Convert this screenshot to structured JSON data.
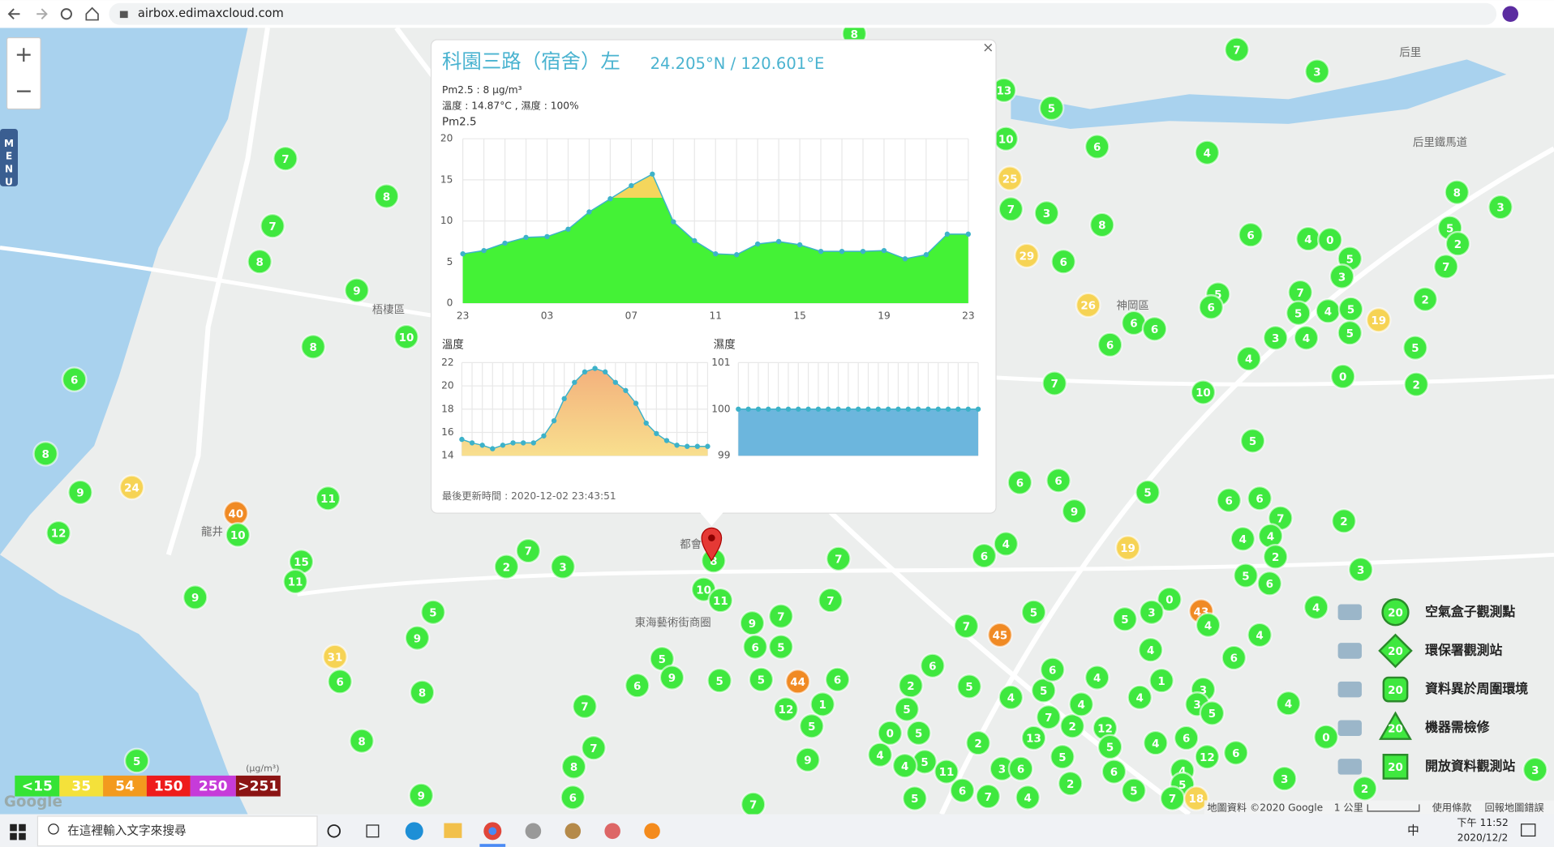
{
  "browser": {
    "url": "airbox.edimaxcloud.com"
  },
  "map": {
    "zoom_in": "+",
    "zoom_out": "−",
    "menu": [
      "M",
      "E",
      "N",
      "U"
    ],
    "google": "Google",
    "attribution": "地圖資料 ©2020 Google",
    "scale": "1 公里",
    "terms": "使用條款",
    "report": "回報地圖錯誤",
    "places": [
      "梧棲區",
      "神岡區",
      "東海藝術街商圈",
      "后里鐵馬道",
      "都會",
      "龍井",
      "后里"
    ],
    "markers": [
      {
        "label": 7,
        "color": "#3fe83f"
      },
      {
        "label": 8,
        "color": "#3fe83f"
      },
      {
        "label": 7,
        "color": "#3fe83f"
      },
      {
        "label": 8,
        "color": "#3fe83f"
      },
      {
        "label": 9,
        "color": "#3fe83f"
      },
      {
        "label": 8,
        "color": "#3fe83f"
      },
      {
        "label": 10,
        "color": "#3fe83f"
      },
      {
        "label": 6,
        "color": "#3fe83f"
      },
      {
        "label": 8,
        "color": "#3fe83f"
      },
      {
        "label": 9,
        "color": "#3fe83f"
      },
      {
        "label": 24,
        "color": "#f6d354"
      },
      {
        "label": 12,
        "color": "#3fe83f"
      },
      {
        "label": 40,
        "color": "#f08a24"
      },
      {
        "label": 10,
        "color": "#3fe83f"
      },
      {
        "label": 11,
        "color": "#3fe83f"
      },
      {
        "label": 15,
        "color": "#3fe83f"
      },
      {
        "label": 11,
        "color": "#3fe83f"
      },
      {
        "label": 9,
        "color": "#3fe83f"
      },
      {
        "label": 31,
        "color": "#f6d354"
      },
      {
        "label": 6,
        "color": "#3fe83f"
      },
      {
        "label": 8,
        "color": "#3fe83f"
      },
      {
        "label": 8,
        "color": "#3fe83f"
      },
      {
        "label": 9,
        "color": "#3fe83f"
      },
      {
        "label": 5,
        "color": "#3fe83f"
      },
      {
        "label": 8,
        "color": "#3fe83f"
      },
      {
        "label": 13,
        "color": "#3fe83f"
      },
      {
        "label": 5,
        "color": "#3fe83f"
      },
      {
        "label": 10,
        "color": "#3fe83f"
      },
      {
        "label": 6,
        "color": "#3fe83f"
      },
      {
        "label": 25,
        "color": "#f6d354"
      },
      {
        "label": 7,
        "color": "#3fe83f"
      },
      {
        "label": 3,
        "color": "#3fe83f"
      },
      {
        "label": 8,
        "color": "#3fe83f"
      },
      {
        "label": 29,
        "color": "#f6d354"
      },
      {
        "label": 6,
        "color": "#3fe83f"
      },
      {
        "label": 7,
        "color": "#3fe83f"
      },
      {
        "label": 3,
        "color": "#3fe83f"
      },
      {
        "label": 4,
        "color": "#3fe83f"
      },
      {
        "label": 8,
        "color": "#3fe83f"
      },
      {
        "label": 3,
        "color": "#3fe83f"
      },
      {
        "label": 6,
        "color": "#3fe83f"
      },
      {
        "label": 4,
        "color": "#3fe83f"
      },
      {
        "label": 0,
        "color": "#3fe83f"
      },
      {
        "label": 5,
        "color": "#3fe83f"
      },
      {
        "label": 2,
        "color": "#3fe83f"
      },
      {
        "label": 5,
        "color": "#3fe83f"
      },
      {
        "label": 3,
        "color": "#3fe83f"
      },
      {
        "label": 7,
        "color": "#3fe83f"
      },
      {
        "label": 2,
        "color": "#3fe83f"
      },
      {
        "label": 26,
        "color": "#f6d354"
      },
      {
        "label": 6,
        "color": "#3fe83f"
      },
      {
        "label": 6,
        "color": "#3fe83f"
      },
      {
        "label": 6,
        "color": "#3fe83f"
      },
      {
        "label": 5,
        "color": "#3fe83f"
      },
      {
        "label": 6,
        "color": "#3fe83f"
      },
      {
        "label": 7,
        "color": "#3fe83f"
      },
      {
        "label": 5,
        "color": "#3fe83f"
      },
      {
        "label": 4,
        "color": "#3fe83f"
      },
      {
        "label": 5,
        "color": "#3fe83f"
      },
      {
        "label": 19,
        "color": "#f6d354"
      },
      {
        "label": 3,
        "color": "#3fe83f"
      },
      {
        "label": 4,
        "color": "#3fe83f"
      },
      {
        "label": 5,
        "color": "#3fe83f"
      },
      {
        "label": 5,
        "color": "#3fe83f"
      },
      {
        "label": 4,
        "color": "#3fe83f"
      },
      {
        "label": 0,
        "color": "#3fe83f"
      },
      {
        "label": 2,
        "color": "#3fe83f"
      },
      {
        "label": 7,
        "color": "#3fe83f"
      },
      {
        "label": 10,
        "color": "#3fe83f"
      },
      {
        "label": 5,
        "color": "#3fe83f"
      },
      {
        "label": 6,
        "color": "#3fe83f"
      },
      {
        "label": 6,
        "color": "#3fe83f"
      },
      {
        "label": 5,
        "color": "#3fe83f"
      },
      {
        "label": 9,
        "color": "#3fe83f"
      },
      {
        "label": 6,
        "color": "#3fe83f"
      },
      {
        "label": 6,
        "color": "#3fe83f"
      },
      {
        "label": 7,
        "color": "#3fe83f"
      },
      {
        "label": 2,
        "color": "#3fe83f"
      },
      {
        "label": 4,
        "color": "#3fe83f"
      },
      {
        "label": 4,
        "color": "#3fe83f"
      },
      {
        "label": 2,
        "color": "#3fe83f"
      },
      {
        "label": 3,
        "color": "#3fe83f"
      },
      {
        "label": 19,
        "color": "#f6d354"
      },
      {
        "label": 4,
        "color": "#3fe83f"
      },
      {
        "label": 6,
        "color": "#3fe83f"
      },
      {
        "label": 5,
        "color": "#3fe83f"
      },
      {
        "label": 6,
        "color": "#3fe83f"
      },
      {
        "label": 4,
        "color": "#3fe83f"
      },
      {
        "label": 0,
        "color": "#3fe83f"
      },
      {
        "label": 43,
        "color": "#f08a24"
      },
      {
        "label": 4,
        "color": "#3fe83f"
      },
      {
        "label": 45,
        "color": "#f08a24"
      },
      {
        "label": 5,
        "color": "#3fe83f"
      },
      {
        "label": 7,
        "color": "#3fe83f"
      },
      {
        "label": 3,
        "color": "#3fe83f"
      },
      {
        "label": 5,
        "color": "#3fe83f"
      },
      {
        "label": 4,
        "color": "#3fe83f"
      },
      {
        "label": 6,
        "color": "#3fe83f"
      },
      {
        "label": 4,
        "color": "#3fe83f"
      },
      {
        "label": 8,
        "color": "#3fe83f"
      },
      {
        "label": 10,
        "color": "#3fe83f"
      },
      {
        "label": 11,
        "color": "#3fe83f"
      },
      {
        "label": 3,
        "color": "#3fe83f"
      },
      {
        "label": 2,
        "color": "#3fe83f"
      },
      {
        "label": 7,
        "color": "#3fe83f"
      },
      {
        "label": 5,
        "color": "#3fe83f"
      },
      {
        "label": 9,
        "color": "#3fe83f"
      },
      {
        "label": 7,
        "color": "#3fe83f"
      },
      {
        "label": 7,
        "color": "#3fe83f"
      },
      {
        "label": 7,
        "color": "#3fe83f"
      },
      {
        "label": 9,
        "color": "#3fe83f"
      },
      {
        "label": 6,
        "color": "#3fe83f"
      },
      {
        "label": 5,
        "color": "#3fe83f"
      },
      {
        "label": 5,
        "color": "#3fe83f"
      },
      {
        "label": 9,
        "color": "#3fe83f"
      },
      {
        "label": 6,
        "color": "#3fe83f"
      },
      {
        "label": 5,
        "color": "#3fe83f"
      },
      {
        "label": 5,
        "color": "#3fe83f"
      },
      {
        "label": 6,
        "color": "#3fe83f"
      },
      {
        "label": 44,
        "color": "#f08a24"
      },
      {
        "label": 1,
        "color": "#3fe83f"
      },
      {
        "label": 12,
        "color": "#3fe83f"
      },
      {
        "label": 5,
        "color": "#3fe83f"
      },
      {
        "label": 9,
        "color": "#3fe83f"
      },
      {
        "label": 7,
        "color": "#3fe83f"
      },
      {
        "label": 7,
        "color": "#3fe83f"
      },
      {
        "label": 8,
        "color": "#3fe83f"
      },
      {
        "label": 6,
        "color": "#3fe83f"
      },
      {
        "label": 7,
        "color": "#3fe83f"
      },
      {
        "label": 6,
        "color": "#3fe83f"
      },
      {
        "label": 2,
        "color": "#3fe83f"
      },
      {
        "label": 5,
        "color": "#3fe83f"
      },
      {
        "label": 5,
        "color": "#3fe83f"
      },
      {
        "label": 0,
        "color": "#3fe83f"
      },
      {
        "label": 5,
        "color": "#3fe83f"
      },
      {
        "label": 4,
        "color": "#3fe83f"
      },
      {
        "label": 5,
        "color": "#3fe83f"
      },
      {
        "label": 4,
        "color": "#3fe83f"
      },
      {
        "label": 11,
        "color": "#3fe83f"
      },
      {
        "label": 6,
        "color": "#3fe83f"
      },
      {
        "label": 7,
        "color": "#3fe83f"
      },
      {
        "label": 5,
        "color": "#3fe83f"
      },
      {
        "label": 2,
        "color": "#3fe83f"
      },
      {
        "label": 4,
        "color": "#3fe83f"
      },
      {
        "label": 7,
        "color": "#3fe83f"
      },
      {
        "label": 2,
        "color": "#3fe83f"
      },
      {
        "label": 13,
        "color": "#3fe83f"
      },
      {
        "label": 5,
        "color": "#3fe83f"
      },
      {
        "label": 3,
        "color": "#3fe83f"
      },
      {
        "label": 6,
        "color": "#3fe83f"
      },
      {
        "label": 2,
        "color": "#3fe83f"
      },
      {
        "label": 4,
        "color": "#3fe83f"
      },
      {
        "label": 5,
        "color": "#3fe83f"
      },
      {
        "label": 6,
        "color": "#3fe83f"
      },
      {
        "label": 4,
        "color": "#3fe83f"
      },
      {
        "label": 4,
        "color": "#3fe83f"
      },
      {
        "label": 12,
        "color": "#3fe83f"
      },
      {
        "label": 5,
        "color": "#3fe83f"
      },
      {
        "label": 6,
        "color": "#3fe83f"
      },
      {
        "label": 5,
        "color": "#3fe83f"
      },
      {
        "label": 1,
        "color": "#3fe83f"
      },
      {
        "label": 4,
        "color": "#3fe83f"
      },
      {
        "label": 3,
        "color": "#3fe83f"
      },
      {
        "label": 3,
        "color": "#3fe83f"
      },
      {
        "label": 5,
        "color": "#3fe83f"
      },
      {
        "label": 4,
        "color": "#3fe83f"
      },
      {
        "label": 3,
        "color": "#3fe83f"
      },
      {
        "label": 6,
        "color": "#3fe83f"
      },
      {
        "label": 4,
        "color": "#3fe83f"
      },
      {
        "label": 6,
        "color": "#3fe83f"
      },
      {
        "label": 12,
        "color": "#3fe83f"
      },
      {
        "label": 4,
        "color": "#3fe83f"
      },
      {
        "label": 5,
        "color": "#3fe83f"
      },
      {
        "label": 7,
        "color": "#3fe83f"
      },
      {
        "label": 18,
        "color": "#f6d354"
      },
      {
        "label": 3,
        "color": "#3fe83f"
      },
      {
        "label": 0,
        "color": "#3fe83f"
      },
      {
        "label": 2,
        "color": "#3fe83f"
      }
    ]
  },
  "popup": {
    "title": "科園三路（宿舍）左",
    "coords": "24.205°N / 120.601°E",
    "pm_line": "Pm2.5 : 8 μg/m³",
    "env_line": "溫度 : 14.87°C , 濕度 : 100%",
    "last_update": "最後更新時間 : 2020-12-02 23:43:51",
    "close": "×"
  },
  "chart_data": [
    {
      "type": "area",
      "title": "Pm2.5",
      "categories": [
        "23",
        null,
        null,
        null,
        "03",
        null,
        null,
        null,
        "07",
        null,
        null,
        null,
        "11",
        null,
        null,
        null,
        "15",
        null,
        null,
        null,
        "19",
        null,
        null,
        null,
        "23"
      ],
      "values": [
        6.0,
        6.4,
        7.3,
        8.0,
        8.1,
        9.0,
        11.1,
        12.7,
        14.3,
        15.7,
        9.9,
        7.6,
        6.0,
        5.9,
        7.2,
        7.5,
        7.1,
        6.3,
        6.3,
        6.3,
        6.4,
        5.4,
        5.9,
        8.4,
        8.4
      ],
      "ylim": [
        0,
        20
      ],
      "yticks": [
        0,
        5,
        10,
        15,
        20
      ],
      "color": "#3db2c9",
      "fill_colors": [
        "#f4d65c",
        "#44f236"
      ],
      "grid": true
    },
    {
      "type": "area",
      "title": "溫度",
      "values": [
        15.4,
        15.1,
        14.9,
        14.6,
        14.9,
        15.1,
        15.1,
        15.1,
        15.7,
        17.0,
        18.9,
        20.3,
        21.2,
        21.5,
        21.2,
        20.3,
        19.6,
        18.5,
        16.8,
        15.9,
        15.3,
        14.9,
        14.8,
        14.8,
        14.8
      ],
      "ylim": [
        14,
        22
      ],
      "yticks": [
        14,
        16,
        18,
        20,
        22
      ],
      "color": "#3db2c9",
      "fill_colors": [
        "#f3b07c",
        "#f8df8e"
      ],
      "grid": true
    },
    {
      "type": "area",
      "title": "濕度",
      "values": [
        100,
        100,
        100,
        100,
        100,
        100,
        100,
        100,
        100,
        100,
        100,
        100,
        100,
        100,
        100,
        100,
        100,
        100,
        100,
        100,
        100,
        100,
        100,
        100,
        100
      ],
      "ylim": [
        99,
        101
      ],
      "yticks": [
        99,
        100,
        101
      ],
      "color": "#3db2c9",
      "fill_colors": [
        "#6cb6dd",
        "#6cb6dd"
      ],
      "grid": true
    }
  ],
  "pm_legend": {
    "unit": "(μg/m³)",
    "levels": [
      {
        "label": "<15",
        "color": "#35e335"
      },
      {
        "label": "35",
        "color": "#f4e13a"
      },
      {
        "label": "54",
        "color": "#f39a1e"
      },
      {
        "label": "150",
        "color": "#ee1c1c"
      },
      {
        "label": "250",
        "color": "#c63bd9"
      },
      {
        "label": ">251",
        "color": "#8b1414"
      }
    ]
  },
  "station_legend": [
    {
      "label": "空氣盒子觀測點",
      "symbol": "20"
    },
    {
      "label": "環保署觀測站",
      "symbol": "20"
    },
    {
      "label": "資料異於周圍環境",
      "symbol": "20"
    },
    {
      "label": "機器需檢修",
      "symbol": "20"
    },
    {
      "label": "開放資料觀測站",
      "symbol": "20"
    }
  ],
  "taskbar": {
    "search": "在這裡輸入文字來搜尋",
    "ime": "中",
    "time": "下午 11:52",
    "date": "2020/12/2"
  }
}
